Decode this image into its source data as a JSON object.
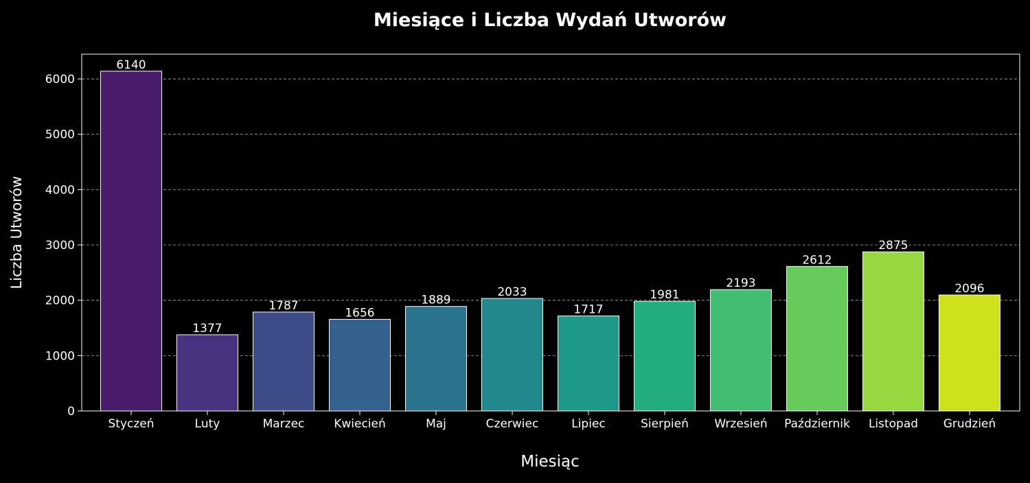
{
  "chart_data": {
    "type": "bar",
    "title": "Miesiące i Liczba Wydań Utworów",
    "xlabel": "Miesiąc",
    "ylabel": "Liczba Utworów",
    "categories": [
      "Styczeń",
      "Luty",
      "Marzec",
      "Kwiecień",
      "Maj",
      "Czerwiec",
      "Lipiec",
      "Sierpień",
      "Wrzesień",
      "Październik",
      "Listopad",
      "Grudzień"
    ],
    "values": [
      6140,
      1377,
      1787,
      1656,
      1889,
      2033,
      1717,
      1981,
      2193,
      2612,
      2875,
      2096
    ],
    "value_labels": [
      "6140",
      "1377",
      "1787",
      "1656",
      "1889",
      "2033",
      "1717",
      "1981",
      "2193",
      "2612",
      "2875",
      "2096"
    ],
    "yticks": [
      0,
      1000,
      2000,
      3000,
      4000,
      5000,
      6000
    ],
    "ytick_labels": [
      "0",
      "1000",
      "2000",
      "3000",
      "4000",
      "5000",
      "6000"
    ],
    "ylim": [
      0,
      6447
    ],
    "grid": "y-dashed",
    "legend": "none",
    "background": "#000000",
    "colors": [
      "#4a1c6c",
      "#47337f",
      "#3e4c8a",
      "#34618d",
      "#2b748e",
      "#23888e",
      "#1f9a8a",
      "#24ae80",
      "#41be71",
      "#67cb5c",
      "#97d840",
      "#cde11d"
    ]
  }
}
